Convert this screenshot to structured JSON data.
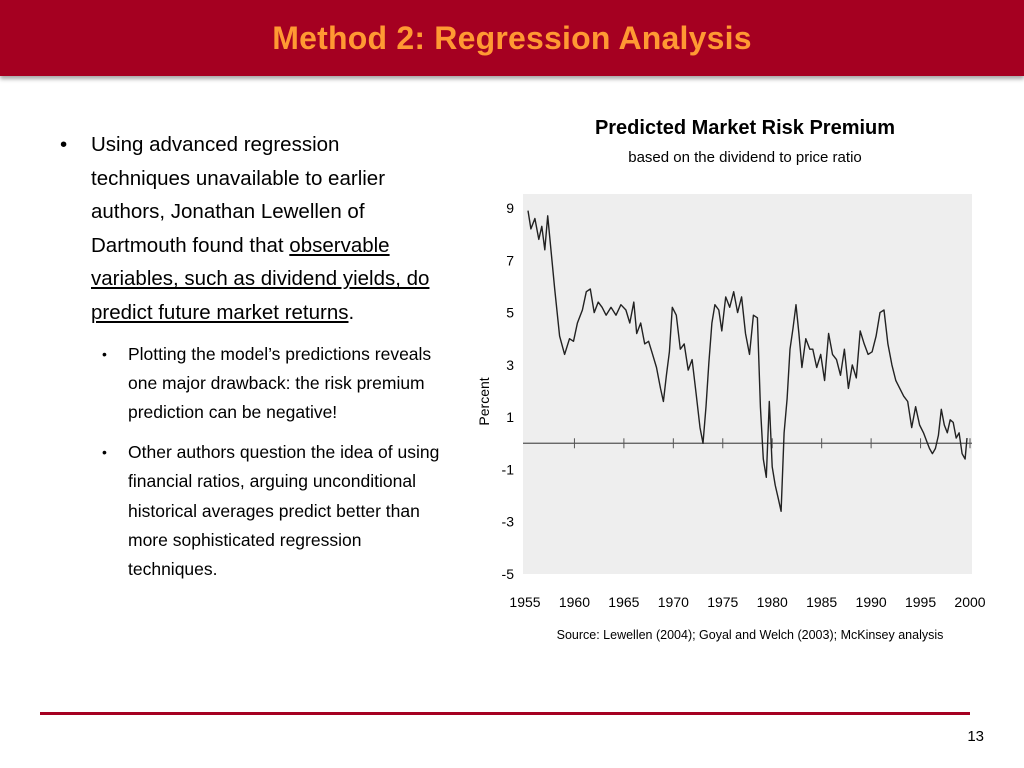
{
  "header": {
    "title": "Method 2: Regression Analysis"
  },
  "bullets": {
    "main": {
      "prefix": "Using advanced regression techniques unavailable to earlier authors, Jonathan Lewellen of Dartmouth found that ",
      "underlined": "observable variables, such as dividend yields, do predict future market returns",
      "suffix": "."
    },
    "sub": [
      "Plotting the model’s predictions reveals one major drawback: the risk premium prediction can be negative!",
      "Other authors question the idea of using financial ratios, arguing unconditional historical averages predict better than more sophisticated regression techniques."
    ]
  },
  "chart_data": {
    "type": "line",
    "title": "Predicted Market Risk Premium",
    "subtitle": "based on the dividend to price ratio",
    "ylabel": "Percent",
    "xlabel": "",
    "xlim": [
      1955,
      2000
    ],
    "ylim": [
      -5,
      9
    ],
    "xticks": [
      1955,
      1960,
      1965,
      1970,
      1975,
      1980,
      1985,
      1990,
      1995,
      2000
    ],
    "xtick_labels": [
      "1955",
      "1960",
      "1965",
      "1970",
      "1975",
      "1980",
      "1985",
      "1990",
      "1995",
      "2000"
    ],
    "yticks": [
      9,
      7,
      5,
      3,
      1,
      -1,
      -3,
      -5
    ],
    "ytick_labels": [
      "9",
      "7",
      "5",
      "3",
      "1",
      "-1",
      "-3",
      "-5"
    ],
    "baseline": 0,
    "grid": false,
    "background": "#eeeeee",
    "series": [
      {
        "color": "#222222",
        "x": [
          1955.3,
          1955.6,
          1956.0,
          1956.4,
          1956.7,
          1957.0,
          1957.3,
          1957.6,
          1958.0,
          1958.5,
          1959.0,
          1959.5,
          1959.9,
          1960.3,
          1960.8,
          1961.2,
          1961.6,
          1962.0,
          1962.4,
          1962.8,
          1963.2,
          1963.7,
          1964.2,
          1964.7,
          1965.2,
          1965.6,
          1966.0,
          1966.3,
          1966.7,
          1967.1,
          1967.5,
          1967.9,
          1968.3,
          1968.7,
          1969.0,
          1969.3,
          1969.6,
          1969.9,
          1970.3,
          1970.7,
          1971.1,
          1971.5,
          1971.9,
          1972.3,
          1972.7,
          1973.0,
          1973.3,
          1973.6,
          1973.9,
          1974.2,
          1974.6,
          1974.9,
          1975.3,
          1975.7,
          1976.1,
          1976.5,
          1976.9,
          1977.3,
          1977.7,
          1978.1,
          1978.5,
          1978.8,
          1979.1,
          1979.4,
          1979.7,
          1980.0,
          1980.3,
          1980.6,
          1980.9,
          1981.2,
          1981.5,
          1981.8,
          1982.1,
          1982.4,
          1982.7,
          1983.0,
          1983.4,
          1983.8,
          1984.1,
          1984.5,
          1984.9,
          1985.3,
          1985.7,
          1986.1,
          1986.5,
          1986.9,
          1987.3,
          1987.7,
          1988.1,
          1988.5,
          1988.9,
          1989.3,
          1989.7,
          1990.1,
          1990.5,
          1990.9,
          1991.3,
          1991.7,
          1992.1,
          1992.5,
          1992.9,
          1993.3,
          1993.7,
          1994.1,
          1994.5,
          1994.9,
          1995.3,
          1995.6,
          1995.9,
          1996.2,
          1996.5,
          1996.8,
          1997.1,
          1997.4,
          1997.7,
          1998.0,
          1998.3,
          1998.6,
          1998.9,
          1999.2,
          1999.5,
          1999.7
        ],
        "y": [
          8.9,
          8.2,
          8.6,
          7.8,
          8.3,
          7.4,
          8.7,
          7.5,
          5.9,
          4.1,
          3.4,
          4.0,
          3.9,
          4.6,
          5.1,
          5.8,
          5.9,
          5.0,
          5.4,
          5.2,
          4.9,
          5.2,
          4.9,
          5.3,
          5.1,
          4.6,
          5.4,
          4.2,
          4.6,
          3.8,
          3.9,
          3.4,
          2.9,
          2.1,
          1.6,
          2.6,
          3.5,
          5.2,
          4.9,
          3.6,
          3.8,
          2.8,
          3.2,
          1.9,
          0.6,
          0.0,
          1.4,
          3.1,
          4.6,
          5.3,
          5.1,
          4.3,
          5.6,
          5.2,
          5.8,
          5.0,
          5.6,
          4.2,
          3.4,
          4.9,
          4.8,
          1.4,
          -0.6,
          -1.3,
          1.6,
          -0.9,
          -1.6,
          -2.1,
          -2.6,
          0.4,
          1.7,
          3.6,
          4.4,
          5.3,
          4.2,
          2.9,
          4.0,
          3.6,
          3.6,
          2.9,
          3.4,
          2.4,
          4.2,
          3.4,
          3.2,
          2.6,
          3.6,
          2.1,
          3.0,
          2.5,
          4.3,
          3.8,
          3.4,
          3.5,
          4.1,
          5.0,
          5.1,
          3.8,
          3.0,
          2.4,
          2.1,
          1.8,
          1.6,
          0.6,
          1.4,
          0.7,
          0.4,
          0.1,
          -0.2,
          -0.4,
          -0.2,
          0.3,
          1.3,
          0.7,
          0.4,
          0.9,
          0.8,
          0.2,
          0.4,
          -0.4,
          -0.6,
          0.2
        ]
      }
    ]
  },
  "source": "Source: Lewellen (2004); Goyal and Welch (2003); McKinsey analysis",
  "page": "13"
}
